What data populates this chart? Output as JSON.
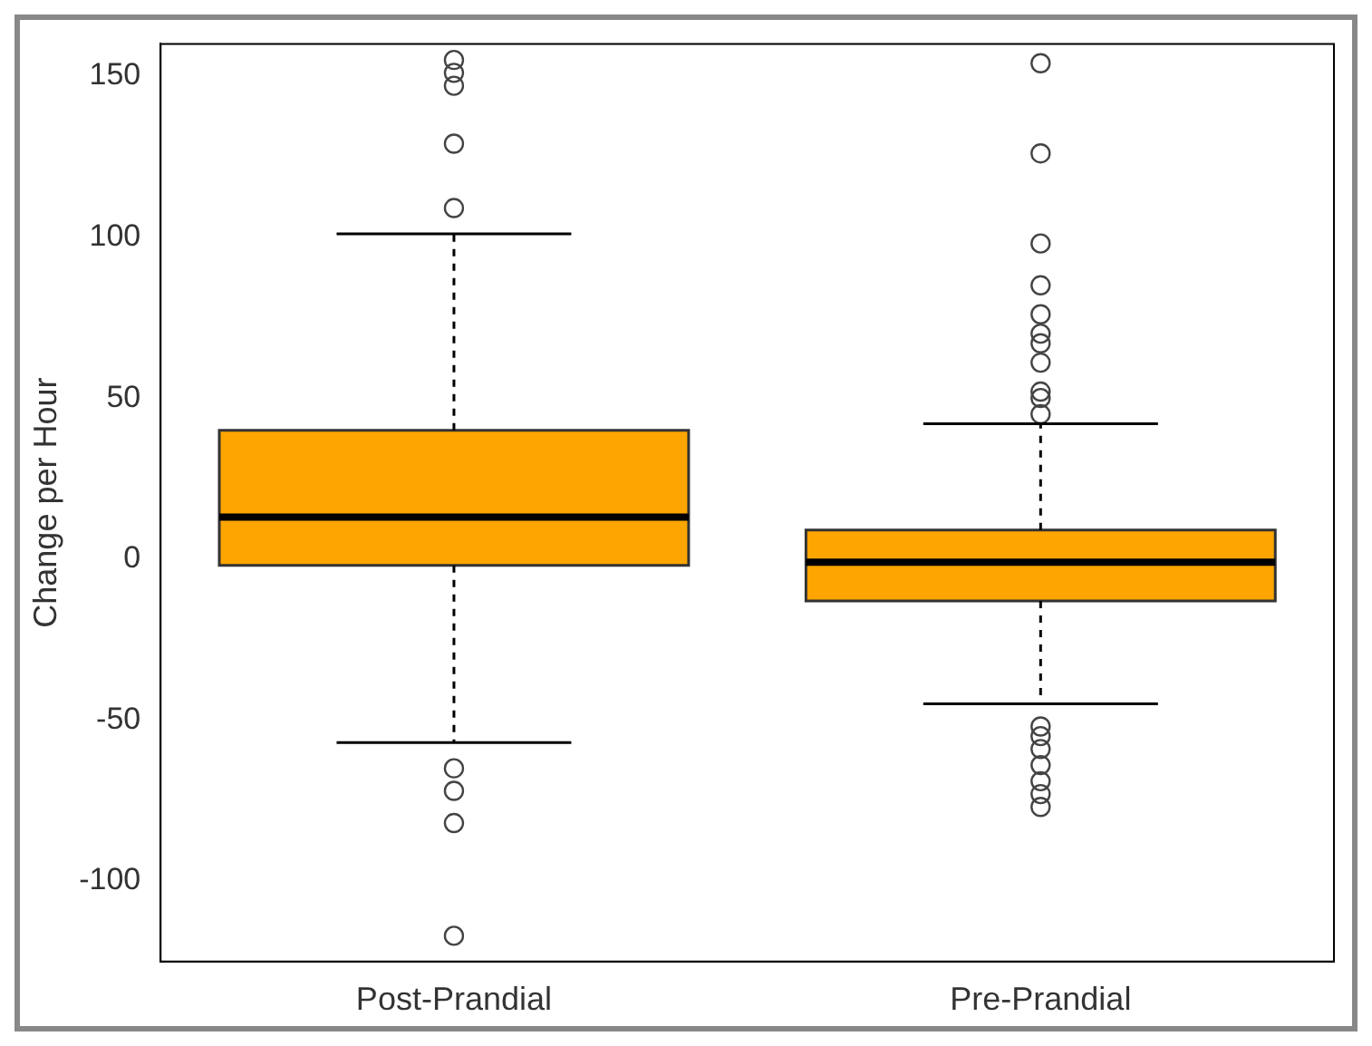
{
  "chart_data": {
    "type": "box",
    "ylabel": "Change per Hour",
    "categories": [
      "Post-Prandial",
      "Pre-Prandial"
    ],
    "color": "#ffa500",
    "ylim": [
      -125,
      160
    ],
    "yticks": [
      -100,
      -50,
      0,
      50,
      100,
      150
    ],
    "grid": false,
    "boxes": [
      {
        "low": -57,
        "q1": -2,
        "median": 13,
        "q3": 40,
        "high": 101,
        "outliers": [
          155,
          151,
          147,
          129,
          109,
          -65,
          -72,
          -82,
          -117
        ]
      },
      {
        "low": -45,
        "q1": -13,
        "median": -1,
        "q3": 9,
        "high": 42,
        "outliers": [
          154,
          126,
          98,
          85,
          76,
          70,
          67,
          61,
          52,
          50,
          45,
          -52,
          -55,
          -59,
          -64,
          -69,
          -73,
          -77
        ]
      }
    ]
  }
}
